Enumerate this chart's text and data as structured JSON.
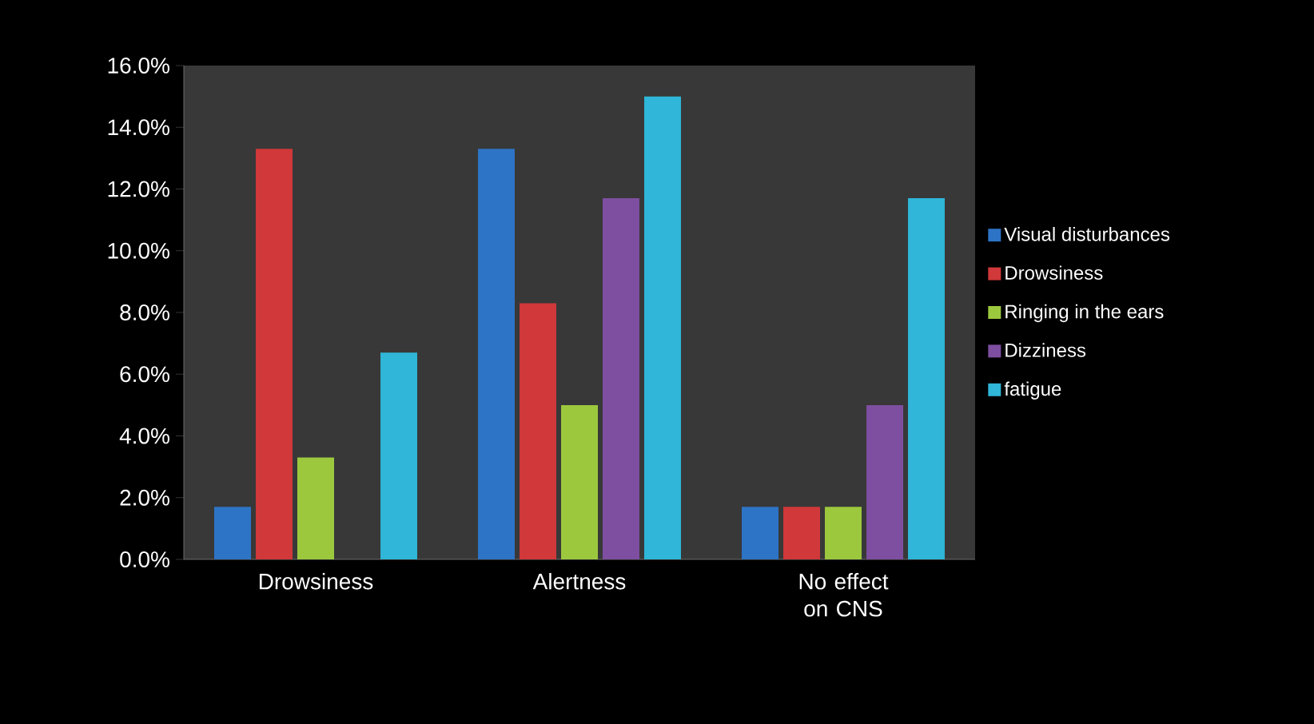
{
  "chart_data": {
    "type": "bar",
    "categories": [
      "Drowsiness",
      "Alertness",
      "No effect on CNS"
    ],
    "series": [
      {
        "name": "Visual disturbances",
        "color": "#2e74c6",
        "values": [
          1.7,
          13.3,
          1.7
        ]
      },
      {
        "name": "Drowsiness",
        "color": "#d0383a",
        "values": [
          13.3,
          8.3,
          1.7
        ]
      },
      {
        "name": "Ringing in the ears",
        "color": "#9cc83e",
        "values": [
          3.3,
          5.0,
          1.7
        ]
      },
      {
        "name": "Dizziness",
        "color": "#7e4fa0",
        "values": [
          0,
          11.7,
          5.0
        ]
      },
      {
        "name": "fatigue",
        "color": "#2fb6d8",
        "values": [
          6.7,
          15.0,
          11.7
        ]
      }
    ],
    "ylim": [
      0,
      16
    ],
    "yticks": [
      {
        "value": 0,
        "label": "0.0%"
      },
      {
        "value": 2,
        "label": "2.0%"
      },
      {
        "value": 4,
        "label": "4.0%"
      },
      {
        "value": 6,
        "label": "6.0%"
      },
      {
        "value": 8,
        "label": "8.0%"
      },
      {
        "value": 10,
        "label": "10.0%"
      },
      {
        "value": 12,
        "label": "12.0%"
      },
      {
        "value": 14,
        "label": "14.0%"
      },
      {
        "value": 16,
        "label": "16.0%"
      }
    ],
    "legend": "right",
    "grid": false
  }
}
